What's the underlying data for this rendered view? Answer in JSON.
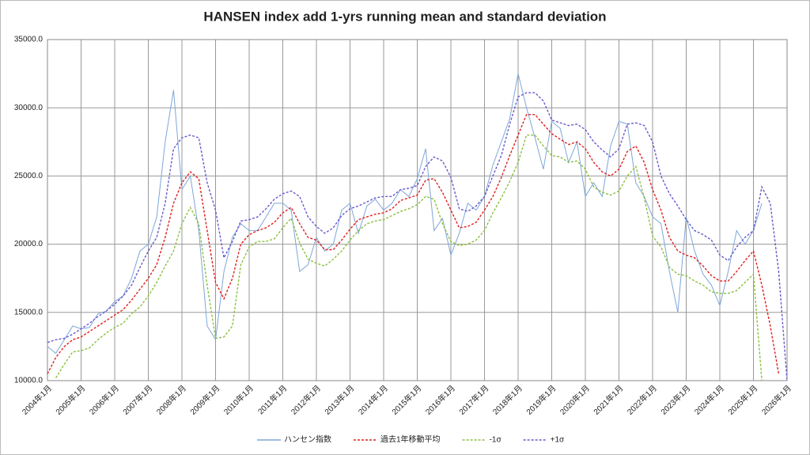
{
  "chart_data": {
    "type": "line",
    "title": "HANSEN index add 1-yrs running mean and standard deviation",
    "categories": [
      "2004年1月",
      null,
      null,
      null,
      "2005年1月",
      null,
      null,
      null,
      "2006年1月",
      null,
      null,
      null,
      "2007年1月",
      null,
      null,
      null,
      "2008年1月",
      null,
      null,
      null,
      "2009年1月",
      null,
      null,
      null,
      "2010年1月",
      null,
      null,
      null,
      "2011年1月",
      null,
      null,
      null,
      "2012年1月",
      null,
      null,
      null,
      "2013年1月",
      null,
      null,
      null,
      "2014年1月",
      null,
      null,
      null,
      "2015年1月",
      null,
      null,
      null,
      "2016年1月",
      null,
      null,
      null,
      "2017年1月",
      null,
      null,
      null,
      "2018年1月",
      null,
      null,
      null,
      "2019年1月",
      null,
      null,
      null,
      "2020年1月",
      null,
      null,
      null,
      "2021年1月",
      null,
      null,
      null,
      "2022年1月",
      null,
      null,
      null,
      "2023年1月",
      null,
      null,
      null,
      "2024年1月",
      null,
      null,
      null,
      "2025年1月",
      null,
      null,
      null,
      "2026年1月"
    ],
    "series": [
      {
        "name": "ハンセン指数",
        "color": "#7ea6d8",
        "dash": false,
        "values": [
          12500,
          12000,
          13000,
          14000,
          13800,
          13900,
          14900,
          15100,
          15800,
          16200,
          17500,
          19500,
          20000,
          22000,
          27500,
          31300,
          24000,
          25000,
          21000,
          14000,
          13000,
          18000,
          20500,
          21500,
          21000,
          21000,
          22000,
          23000,
          23000,
          22500,
          18000,
          18500,
          20500,
          19500,
          20000,
          22500,
          23000,
          20800,
          22800,
          23300,
          22500,
          23000,
          24000,
          23500,
          24800,
          27000,
          21000,
          21900,
          19200,
          20800,
          23000,
          22500,
          23500,
          25800,
          27500,
          29200,
          32500,
          30000,
          27800,
          25500,
          29000,
          28500,
          26000,
          27500,
          23500,
          24500,
          23500,
          27200,
          29000,
          28800,
          24500,
          23500,
          22000,
          21500,
          18000,
          15000,
          22000,
          19500,
          17800,
          17000,
          15500,
          18000,
          21000,
          20000,
          21000,
          23000,
          null,
          null,
          null
        ]
      },
      {
        "name": "過去1年移動平均",
        "color": "#e02020",
        "dash": true,
        "values": [
          10500,
          11700,
          12500,
          13000,
          13200,
          13600,
          14000,
          14400,
          14800,
          15200,
          15900,
          16700,
          17500,
          18500,
          20500,
          23000,
          24500,
          25300,
          24800,
          21000,
          17200,
          16000,
          17500,
          20000,
          20700,
          21000,
          21200,
          21600,
          22300,
          22700,
          21500,
          20500,
          20300,
          19600,
          19600,
          20300,
          21100,
          21800,
          22000,
          22200,
          22300,
          22600,
          23200,
          23400,
          23600,
          24700,
          24800,
          23800,
          22500,
          21200,
          21300,
          21600,
          22500,
          23500,
          24900,
          26500,
          28000,
          29500,
          29500,
          28800,
          28100,
          27700,
          27300,
          27500,
          27000,
          26000,
          25300,
          25000,
          25500,
          26800,
          27200,
          26000,
          24000,
          22500,
          20500,
          19500,
          19200,
          19000,
          18400,
          17700,
          17300,
          17300,
          18000,
          18800,
          19500,
          17000,
          14000,
          10500,
          null
        ]
      },
      {
        "name": "-1σ",
        "color": "#8cbf3f",
        "dash": true,
        "values": [
          null,
          10200,
          11200,
          12100,
          12200,
          12400,
          13000,
          13500,
          13900,
          14200,
          14900,
          15400,
          16200,
          17200,
          18400,
          19500,
          21500,
          22700,
          21500,
          17000,
          13100,
          13200,
          14000,
          18500,
          19800,
          20200,
          20200,
          20400,
          21200,
          21900,
          20100,
          18900,
          18600,
          18400,
          18900,
          19500,
          20300,
          21000,
          21500,
          21700,
          21800,
          22100,
          22400,
          22600,
          22900,
          23500,
          23300,
          21500,
          20200,
          19900,
          20000,
          20300,
          21000,
          22300,
          23400,
          24600,
          26000,
          28000,
          28000,
          27200,
          26500,
          26400,
          26000,
          26100,
          25500,
          24200,
          23800,
          23600,
          23900,
          25000,
          25700,
          23400,
          20600,
          19800,
          18300,
          17800,
          17700,
          17300,
          17000,
          16500,
          16400,
          16400,
          16600,
          17200,
          17800,
          10000,
          null,
          null,
          null
        ]
      },
      {
        "name": "+1σ",
        "color": "#6a5acd",
        "dash": true,
        "values": [
          12800,
          13000,
          13100,
          13400,
          13800,
          14200,
          14700,
          15100,
          15600,
          16200,
          17000,
          18300,
          19500,
          20500,
          23000,
          27000,
          27800,
          28000,
          27800,
          24500,
          22500,
          19000,
          20200,
          21700,
          21800,
          22000,
          22600,
          23300,
          23700,
          23900,
          23500,
          22000,
          21300,
          20800,
          21200,
          22100,
          22600,
          22800,
          23100,
          23400,
          23500,
          23500,
          24000,
          24100,
          24300,
          25700,
          26400,
          26100,
          24900,
          22600,
          22400,
          22800,
          23500,
          25000,
          26500,
          28800,
          30800,
          31100,
          31100,
          30500,
          29100,
          28900,
          28700,
          28800,
          28400,
          27500,
          26900,
          26400,
          27000,
          28800,
          28900,
          28700,
          27500,
          25000,
          23700,
          22800,
          21800,
          21000,
          20700,
          20300,
          19200,
          18800,
          19800,
          20500,
          21000,
          24200,
          23000,
          18000,
          10000
        ]
      }
    ],
    "ylim": [
      10000,
      35000
    ],
    "yticks": [
      {
        "value": 10000,
        "label": "10000.0"
      },
      {
        "value": 15000,
        "label": "15000.0"
      },
      {
        "value": 20000,
        "label": "20000.0"
      },
      {
        "value": 25000,
        "label": "25000.0"
      },
      {
        "value": 30000,
        "label": "30000.0"
      },
      {
        "value": 35000,
        "label": "35000.0"
      }
    ],
    "grid": true,
    "legend": "bottom"
  }
}
